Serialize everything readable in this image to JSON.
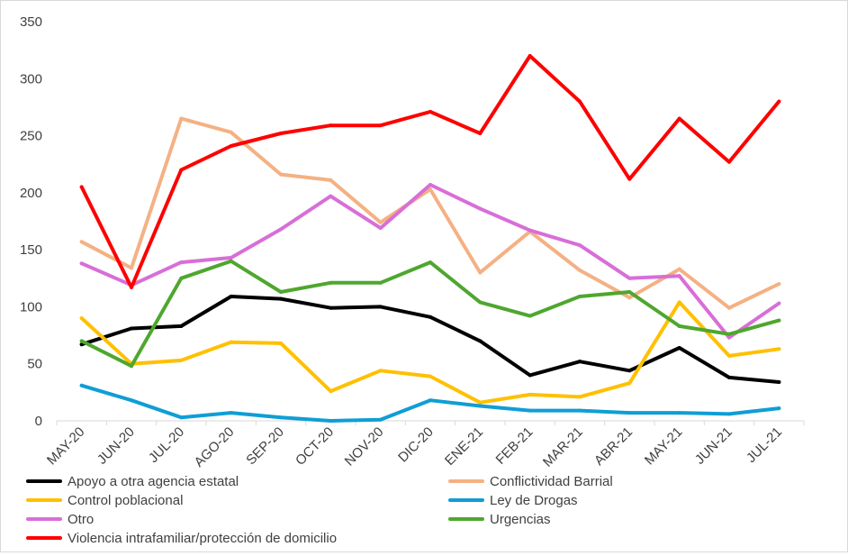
{
  "chart_data": {
    "type": "line",
    "title": "",
    "xlabel": "",
    "ylabel": "",
    "ylim": [
      0,
      350
    ],
    "yticks": [
      0,
      50,
      100,
      150,
      200,
      250,
      300,
      350
    ],
    "grid": false,
    "legend_position": "bottom",
    "categories": [
      "MAY-20",
      "JUN-20",
      "JUL-20",
      "AGO-20",
      "SEP-20",
      "OCT-20",
      "NOV-20",
      "DIC-20",
      "ENE-21",
      "FEB-21",
      "MAR-21",
      "ABR-21",
      "MAY-21",
      "JUN-21",
      "JUL-21"
    ],
    "series": [
      {
        "name": "Apoyo a otra agencia estatal",
        "color": "#000000",
        "values": [
          67,
          81,
          83,
          109,
          107,
          99,
          100,
          91,
          70,
          40,
          52,
          44,
          64,
          38,
          34
        ]
      },
      {
        "name": "Conflictividad Barrial",
        "color": "#F4B183",
        "values": [
          157,
          134,
          265,
          253,
          216,
          211,
          174,
          203,
          130,
          166,
          132,
          108,
          133,
          99,
          120
        ]
      },
      {
        "name": "Control poblacional",
        "color": "#FFC000",
        "values": [
          90,
          50,
          53,
          69,
          68,
          26,
          44,
          39,
          16,
          23,
          21,
          33,
          104,
          57,
          63
        ]
      },
      {
        "name": "Ley de Drogas",
        "color": "#0F9ED5",
        "values": [
          31,
          18,
          3,
          7,
          3,
          0,
          1,
          18,
          13,
          9,
          9,
          7,
          7,
          6,
          11
        ]
      },
      {
        "name": "Otro",
        "color": "#D86ED8",
        "values": [
          138,
          119,
          139,
          143,
          168,
          197,
          169,
          207,
          186,
          167,
          154,
          125,
          127,
          73,
          103
        ]
      },
      {
        "name": "Urgencias",
        "color": "#4EA72E",
        "values": [
          70,
          48,
          125,
          140,
          113,
          121,
          121,
          139,
          104,
          92,
          109,
          113,
          83,
          76,
          88
        ]
      },
      {
        "name": "Violencia intrafamiliar/protección de domicilio",
        "color": "#FF0000",
        "values": [
          205,
          117,
          220,
          241,
          252,
          259,
          259,
          271,
          252,
          320,
          280,
          212,
          265,
          227,
          280
        ]
      }
    ]
  }
}
